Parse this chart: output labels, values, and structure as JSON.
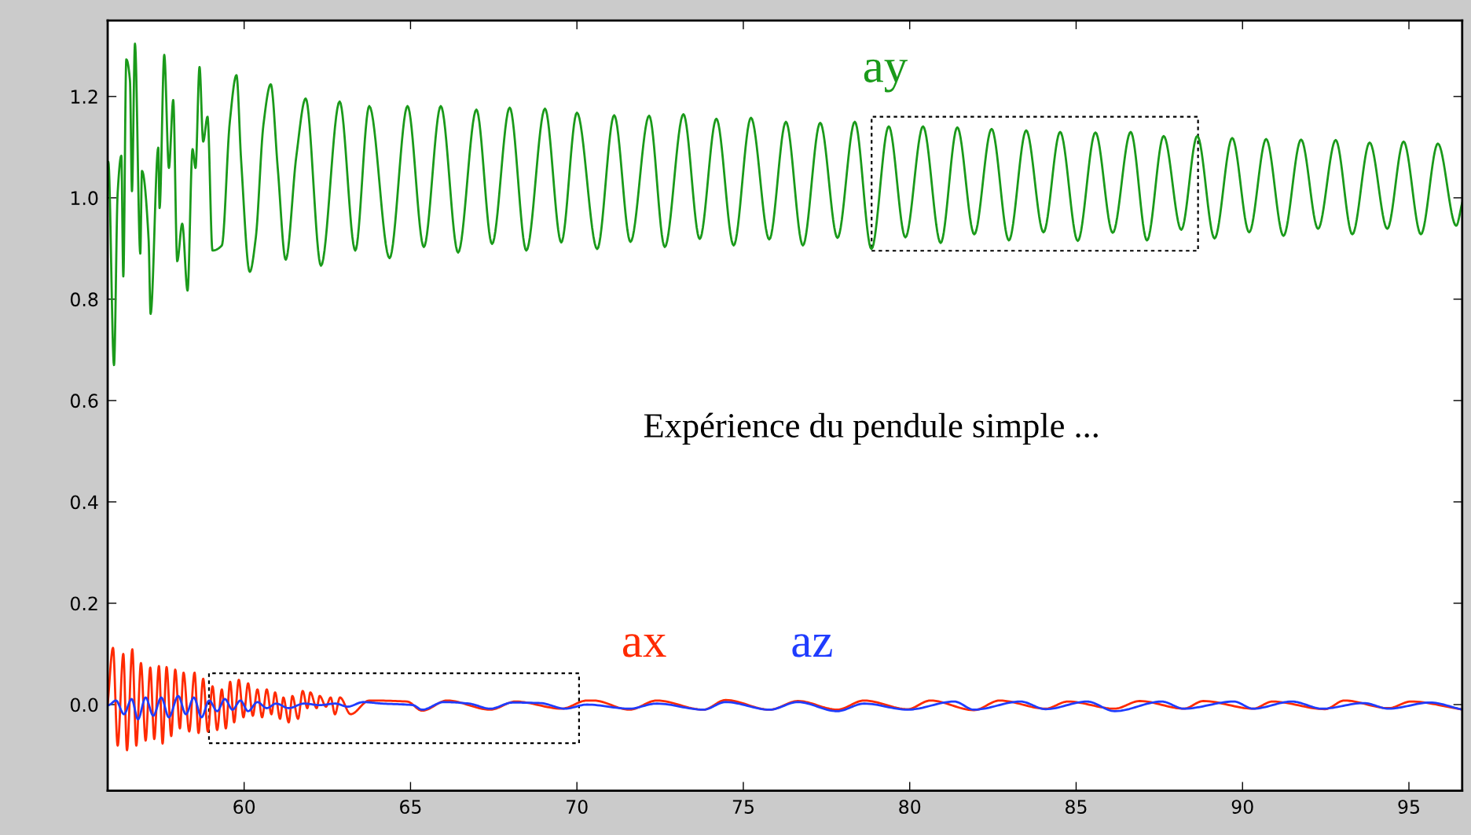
{
  "chart_data": {
    "type": "line",
    "annotations": [
      "Expérience du pendule simple ..."
    ],
    "xlim": [
      55.9,
      96.6
    ],
    "xticks": [
      60,
      65,
      70,
      75,
      80,
      85,
      90,
      95
    ],
    "ylim": [
      -0.17,
      1.35
    ],
    "yticks": [
      {
        "value": 0,
        "label": "0.0"
      },
      {
        "value": 0.2,
        "label": "0.2"
      },
      {
        "value": 0.4,
        "label": "0.4"
      },
      {
        "value": 0.6,
        "label": "0.6"
      },
      {
        "value": 0.8,
        "label": "0.8"
      },
      {
        "value": 1.0,
        "label": "1.0"
      },
      {
        "value": 1.2,
        "label": "1.2"
      }
    ],
    "grid": false,
    "legend": false,
    "marker": "none",
    "line_style": "solid",
    "series": [
      {
        "name": "ay",
        "color": "#1a9a1a",
        "x": [
          55.9,
          55.92,
          56.09,
          56.2,
          56.31,
          56.37,
          56.46,
          56.57,
          56.63,
          56.72,
          56.88,
          56.93,
          57.13,
          57.19,
          57.42,
          57.46,
          57.6,
          57.74,
          57.87,
          57.99,
          58.14,
          58.3,
          58.45,
          58.54,
          58.66,
          58.77,
          58.9,
          59.05,
          59.33,
          59.57,
          59.77,
          59.91,
          60.17,
          60.35,
          60.58,
          60.8,
          61.01,
          61.25,
          61.57,
          61.85,
          62.31,
          62.87,
          63.34,
          63.76,
          64.37,
          64.91,
          65.4,
          65.91,
          66.43,
          66.98,
          67.45,
          67.98,
          68.48,
          69.04,
          69.53,
          70.0,
          70.61,
          71.12,
          71.61,
          72.17,
          72.64,
          73.2,
          73.69,
          74.19,
          74.71,
          75.23,
          75.78,
          76.28,
          76.79,
          77.31,
          77.83,
          78.35,
          78.85,
          79.37,
          79.87,
          80.4,
          80.93,
          81.43,
          81.94,
          82.46,
          82.98,
          83.5,
          84.02,
          84.52,
          85.05,
          85.58,
          86.1,
          86.64,
          87.13,
          87.63,
          88.16,
          88.64,
          89.16,
          89.69,
          90.2,
          90.71,
          91.23,
          91.76,
          92.27,
          92.8,
          93.3,
          93.82,
          94.35,
          94.84,
          95.36,
          95.87,
          96.42,
          96.6
        ],
        "values": [
          1.05,
          1.071,
          0.67,
          1.01,
          1.083,
          0.845,
          1.273,
          1.231,
          1.013,
          1.304,
          0.89,
          1.053,
          0.918,
          0.771,
          1.099,
          0.98,
          1.282,
          1.059,
          1.193,
          0.875,
          0.949,
          0.817,
          1.096,
          1.059,
          1.258,
          1.111,
          1.16,
          0.896,
          0.906,
          1.15,
          1.242,
          1.074,
          0.854,
          0.921,
          1.144,
          1.224,
          1.059,
          0.878,
          1.083,
          1.196,
          0.866,
          1.19,
          0.896,
          1.181,
          0.881,
          1.181,
          0.903,
          1.181,
          0.892,
          1.174,
          0.909,
          1.178,
          0.896,
          1.176,
          0.912,
          1.168,
          0.899,
          1.163,
          0.913,
          1.162,
          0.903,
          1.165,
          0.919,
          1.156,
          0.906,
          1.158,
          0.918,
          1.15,
          0.906,
          1.148,
          0.921,
          1.15,
          0.899,
          1.141,
          0.922,
          1.141,
          0.911,
          1.139,
          0.928,
          1.136,
          0.916,
          1.133,
          0.932,
          1.13,
          0.915,
          1.129,
          0.931,
          1.13,
          0.916,
          1.122,
          0.937,
          1.122,
          0.92,
          1.118,
          0.932,
          1.116,
          0.925,
          1.115,
          0.939,
          1.114,
          0.928,
          1.109,
          0.939,
          1.111,
          0.928,
          1.107,
          0.945,
          0.99
        ]
      },
      {
        "name": "ax",
        "color": "#ff2a00",
        "x": [
          55.9,
          56.06,
          56.2,
          56.37,
          56.48,
          56.64,
          56.76,
          56.9,
          57.04,
          57.18,
          57.3,
          57.44,
          57.55,
          57.67,
          57.81,
          57.93,
          58.07,
          58.18,
          58.35,
          58.51,
          58.63,
          58.77,
          58.91,
          59.05,
          59.19,
          59.33,
          59.45,
          59.58,
          59.7,
          59.84,
          59.98,
          60.12,
          60.26,
          60.4,
          60.54,
          60.68,
          60.82,
          60.93,
          61.08,
          61.18,
          61.34,
          61.45,
          61.62,
          61.76,
          61.9,
          61.99,
          62.18,
          62.27,
          62.46,
          62.6,
          62.73,
          62.88,
          63.2,
          63.76,
          64.9,
          65.35,
          66.1,
          67.4,
          68.15,
          69.55,
          70.3,
          70.5,
          71.58,
          72.4,
          73.8,
          74.47,
          75.79,
          76.64,
          77.82,
          78.63,
          79.94,
          80.62,
          81.93,
          82.7,
          84.08,
          84.75,
          86.16,
          86.91,
          88.24,
          88.82,
          90.32,
          90.9,
          92.48,
          93.06,
          94.39,
          95.06,
          96.55
        ],
        "values": [
          0.0,
          0.112,
          -0.081,
          0.1,
          -0.09,
          0.109,
          -0.081,
          0.082,
          -0.071,
          0.073,
          -0.068,
          0.076,
          -0.077,
          0.074,
          -0.062,
          0.069,
          -0.047,
          0.063,
          -0.053,
          0.063,
          -0.056,
          0.051,
          -0.053,
          0.036,
          -0.05,
          0.03,
          -0.047,
          0.045,
          -0.035,
          0.049,
          -0.025,
          0.042,
          -0.022,
          0.03,
          -0.025,
          0.03,
          -0.019,
          0.024,
          -0.028,
          0.014,
          -0.035,
          0.017,
          -0.028,
          0.027,
          -0.007,
          0.024,
          -0.007,
          0.017,
          -0.004,
          0.014,
          -0.019,
          0.014,
          -0.019,
          0.008,
          0.006,
          -0.012,
          0.008,
          -0.01,
          0.006,
          -0.008,
          0.008,
          0.008,
          -0.01,
          0.008,
          -0.01,
          0.009,
          -0.01,
          0.007,
          -0.01,
          0.008,
          -0.009,
          0.008,
          -0.011,
          0.008,
          -0.008,
          0.006,
          -0.008,
          0.007,
          -0.008,
          0.007,
          -0.008,
          0.006,
          -0.009,
          0.008,
          -0.007,
          0.006,
          -0.009
        ]
      },
      {
        "name": "az",
        "color": "#1f3cff",
        "x": [
          55.9,
          55.92,
          56.15,
          56.39,
          56.62,
          56.81,
          57.04,
          57.27,
          57.51,
          57.74,
          58.02,
          58.25,
          58.49,
          58.72,
          58.95,
          59.19,
          59.42,
          59.65,
          59.89,
          60.12,
          60.4,
          60.68,
          60.96,
          61.34,
          61.8,
          62.27,
          62.74,
          63.11,
          63.58,
          64.14,
          65.07,
          65.35,
          66.0,
          66.75,
          67.4,
          68.06,
          68.9,
          69.65,
          70.3,
          71.58,
          72.4,
          73.8,
          74.47,
          75.79,
          76.64,
          77.82,
          78.63,
          79.94,
          81.34,
          81.93,
          83.33,
          84.08,
          85.33,
          86.16,
          87.57,
          88.24,
          89.74,
          90.32,
          91.48,
          92.4,
          93.64,
          94.39,
          95.64,
          96.55
        ],
        "values": [
          0.0,
          -0.001,
          0.008,
          -0.019,
          0.011,
          -0.029,
          0.014,
          -0.022,
          0.014,
          -0.025,
          0.017,
          -0.019,
          0.014,
          -0.025,
          0.008,
          -0.013,
          0.011,
          -0.01,
          0.008,
          -0.013,
          0.005,
          -0.007,
          0.002,
          -0.007,
          0.002,
          -0.001,
          0.002,
          -0.004,
          0.005,
          0.002,
          -0.001,
          -0.01,
          0.005,
          0.002,
          -0.008,
          0.004,
          0.003,
          -0.008,
          0.0,
          -0.008,
          0.002,
          -0.01,
          0.005,
          -0.01,
          0.005,
          -0.013,
          0.002,
          -0.01,
          0.006,
          -0.01,
          0.006,
          -0.009,
          0.006,
          -0.013,
          0.006,
          -0.008,
          0.006,
          -0.008,
          0.006,
          -0.008,
          0.003,
          -0.008,
          0.004,
          -0.009
        ]
      }
    ]
  }
}
